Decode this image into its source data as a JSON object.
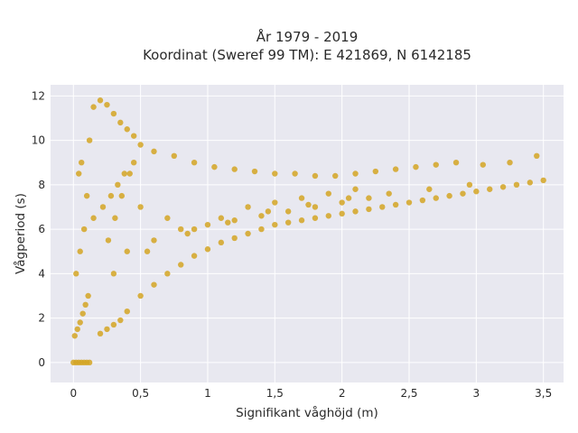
{
  "chart_data": {
    "type": "scatter",
    "title": "År 1979 - 2019",
    "subtitle": "Koordinat (Sweref 99 TM): E 421869, N 6142185",
    "xlabel": "Signifikant våghöjd (m)",
    "ylabel": "Vågperiod (s)",
    "xlim": [
      -0.17,
      3.65
    ],
    "ylim": [
      -0.9,
      12.5
    ],
    "xticks": [
      0,
      0.5,
      1,
      1.5,
      2,
      2.5,
      3,
      3.5
    ],
    "xtick_labels": [
      "0",
      "0,5",
      "1",
      "1,5",
      "2",
      "2,5",
      "3",
      "3,5"
    ],
    "yticks": [
      0,
      2,
      4,
      6,
      8,
      10,
      12
    ],
    "ytick_labels": [
      "0",
      "2",
      "4",
      "6",
      "8",
      "10",
      "12"
    ],
    "grid": true,
    "marker_color": "#D4A423",
    "plot_background": "#E8E8F0",
    "series": [
      {
        "x": [
          0.0,
          0.02,
          0.04,
          0.06,
          0.08,
          0.1,
          0.12,
          0.01,
          0.03,
          0.05,
          0.07,
          0.09,
          0.11,
          0.02,
          0.05,
          0.08,
          0.1,
          0.04,
          0.06,
          0.12,
          0.15,
          0.2,
          0.25,
          0.3,
          0.35,
          0.4,
          0.45,
          0.5,
          0.2,
          0.25,
          0.3,
          0.35,
          0.4,
          0.5,
          0.6,
          0.7,
          0.8,
          0.9,
          1.0,
          1.1,
          1.2,
          1.3,
          1.4,
          1.5,
          1.6,
          1.7,
          1.8,
          1.9,
          2.0,
          2.1,
          2.2,
          2.3,
          2.4,
          2.5,
          2.6,
          2.7,
          2.8,
          2.9,
          3.0,
          3.1,
          3.2,
          3.3,
          3.4,
          3.5,
          0.15,
          0.22,
          0.28,
          0.33,
          0.38,
          0.45,
          0.26,
          0.31,
          0.36,
          0.42,
          0.6,
          0.75,
          0.9,
          1.05,
          1.2,
          1.35,
          1.5,
          1.65,
          1.8,
          1.95,
          2.1,
          2.25,
          2.4,
          2.55,
          2.7,
          2.85,
          3.05,
          3.25,
          3.45,
          0.5,
          0.7,
          0.9,
          1.1,
          1.3,
          1.5,
          1.7,
          1.9,
          2.1,
          0.4,
          0.6,
          0.8,
          1.0,
          1.2,
          1.4,
          1.6,
          1.8,
          2.0,
          2.2,
          0.3,
          0.55,
          0.85,
          1.15,
          1.45,
          1.75,
          2.05,
          2.35,
          2.65,
          2.95
        ],
        "y": [
          0.0,
          0.0,
          0.0,
          0.0,
          0.0,
          0.0,
          0.0,
          1.2,
          1.5,
          1.8,
          2.2,
          2.6,
          3.0,
          4.0,
          5.0,
          6.0,
          7.5,
          8.5,
          9.0,
          10.0,
          11.5,
          11.8,
          11.6,
          11.2,
          10.8,
          10.5,
          10.2,
          9.8,
          1.3,
          1.5,
          1.7,
          1.9,
          2.3,
          3.0,
          3.5,
          4.0,
          4.4,
          4.8,
          5.1,
          5.4,
          5.6,
          5.8,
          6.0,
          6.2,
          6.3,
          6.4,
          6.5,
          6.6,
          6.7,
          6.8,
          6.9,
          7.0,
          7.1,
          7.2,
          7.3,
          7.4,
          7.5,
          7.6,
          7.7,
          7.8,
          7.9,
          8.0,
          8.1,
          8.2,
          6.5,
          7.0,
          7.5,
          8.0,
          8.5,
          9.0,
          5.5,
          6.5,
          7.5,
          8.5,
          9.5,
          9.3,
          9.0,
          8.8,
          8.7,
          8.6,
          8.5,
          8.5,
          8.4,
          8.4,
          8.5,
          8.6,
          8.7,
          8.8,
          8.9,
          9.0,
          8.9,
          9.0,
          9.3,
          7.0,
          6.5,
          6.0,
          6.5,
          7.0,
          7.2,
          7.4,
          7.6,
          7.8,
          5.0,
          5.5,
          6.0,
          6.2,
          6.4,
          6.6,
          6.8,
          7.0,
          7.2,
          7.4,
          4.0,
          5.0,
          5.8,
          6.3,
          6.8,
          7.1,
          7.4,
          7.6,
          7.8,
          8.0
        ]
      }
    ]
  }
}
